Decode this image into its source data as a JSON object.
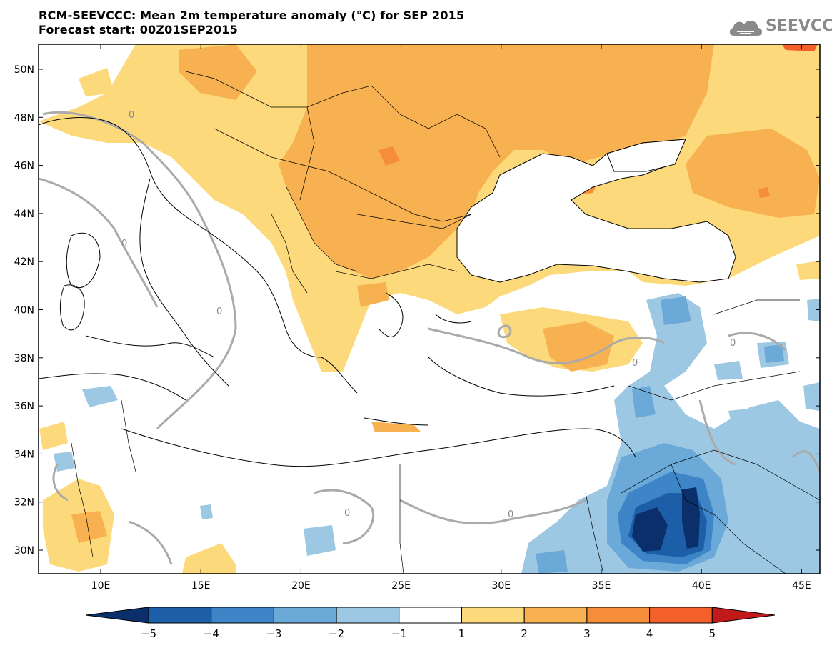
{
  "header": {
    "title": "RCM-SEEVCCC: Mean 2m temperature anomaly (°C) for SEP 2015",
    "subtitle": "Forecast start: 00Z01SEP2015"
  },
  "logo": {
    "text": "SEEVCCC",
    "icon": "cloud-logo-icon"
  },
  "map": {
    "lat_labels": [
      "50N",
      "48N",
      "46N",
      "44N",
      "42N",
      "40N",
      "38N",
      "36N",
      "34N",
      "32N",
      "30N"
    ],
    "lon_labels": [
      "10E",
      "15E",
      "20E",
      "25E",
      "30E",
      "35E",
      "40E",
      "45E"
    ],
    "contour_label": "0"
  },
  "colorbar": {
    "labels": [
      "−5",
      "−4",
      "−3",
      "−2",
      "−1",
      "1",
      "2",
      "3",
      "4",
      "5"
    ],
    "colors": [
      "#0a2f6b",
      "#1d5ea8",
      "#3d85c6",
      "#6aa9d8",
      "#9dc8e3",
      "#ffffff",
      "#fcd97a",
      "#f8b150",
      "#f68d38",
      "#f4602a",
      "#e0281c",
      "#c2191b"
    ]
  },
  "palette": {
    "anom_pos1": "#fcd97a",
    "anom_pos2": "#f8b150",
    "anom_pos3": "#f68d38",
    "anom_neg1": "#9dc8e3",
    "anom_neg2": "#6aa9d8",
    "anom_neg3": "#3d85c6",
    "anom_neg4": "#1d5ea8",
    "anom_neg5": "#0a2f6b",
    "contour": "#aaaaaa",
    "coast": "#000000"
  }
}
